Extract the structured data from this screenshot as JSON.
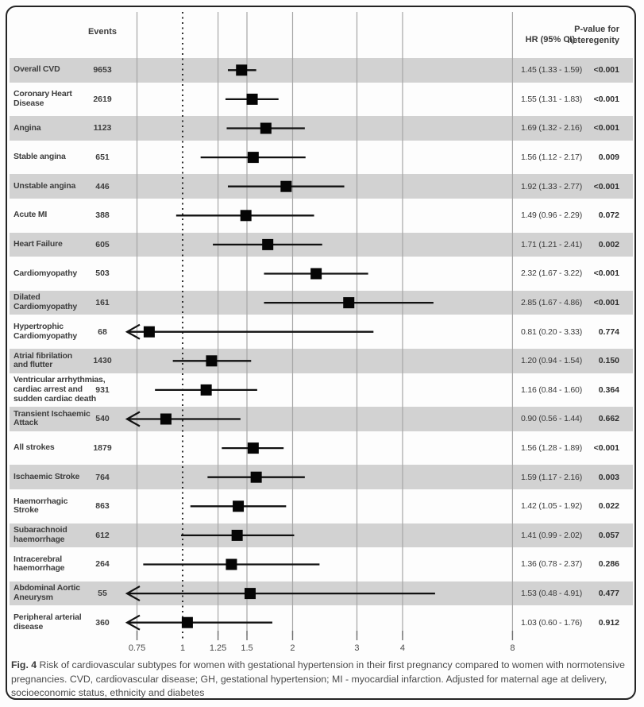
{
  "header": {
    "events": "Events",
    "hr": "HR (95% CI)",
    "pvalue_line1": "P-value for",
    "pvalue_line2": "heteregenity"
  },
  "caption": {
    "label": "Fig. 4",
    "text": " Risk of cardiovascular subtypes for women with gestational hypertension in their first pregnancy compared to women with normotensive pregnancies. CVD, cardiovascular disease; GH, gestational hypertension; MI - myocardial infarction. Adjusted for maternal age at delivery, socioeconomic status, ethnicity and diabetes"
  },
  "chart_data": {
    "type": "forest",
    "x_scale": "log",
    "xticks": [
      0.75,
      1,
      1.25,
      1.5,
      2,
      3,
      4,
      8
    ],
    "xtick_labels": [
      "0.75",
      "1",
      "1.25",
      "1.5",
      "2",
      "3",
      "4",
      "8"
    ],
    "reference_line": 1,
    "xlim": [
      0.71,
      8.5
    ],
    "clip_min": 0.71,
    "grid": "vertical-on",
    "colors": {
      "band": "#d2d2d2",
      "marker": "#050505",
      "ci_line": "#111111",
      "gridline": "#a6a6a6",
      "reference_line": "#1a1a1a",
      "axis_text": "#4a4a4a"
    },
    "rows": [
      {
        "label_lines": [
          "Overall CVD"
        ],
        "events": "9653",
        "hr": 1.45,
        "ci_low": 1.33,
        "ci_high": 1.59,
        "hr_text": "1.45 (1.33 - 1.59)",
        "p": "<0.001"
      },
      {
        "label_lines": [
          "Coronary Heart",
          "Disease"
        ],
        "events": "2619",
        "hr": 1.55,
        "ci_low": 1.31,
        "ci_high": 1.83,
        "hr_text": "1.55 (1.31 - 1.83)",
        "p": "<0.001"
      },
      {
        "label_lines": [
          "Angina"
        ],
        "events": "1123",
        "hr": 1.69,
        "ci_low": 1.32,
        "ci_high": 2.16,
        "hr_text": "1.69 (1.32 - 2.16)",
        "p": "<0.001"
      },
      {
        "label_lines": [
          "Stable angina"
        ],
        "events": "651",
        "hr": 1.56,
        "ci_low": 1.12,
        "ci_high": 2.17,
        "hr_text": "1.56 (1.12 - 2.17)",
        "p": "0.009"
      },
      {
        "label_lines": [
          "Unstable angina"
        ],
        "events": "446",
        "hr": 1.92,
        "ci_low": 1.33,
        "ci_high": 2.77,
        "hr_text": "1.92 (1.33 - 2.77)",
        "p": "<0.001"
      },
      {
        "label_lines": [
          "Acute MI"
        ],
        "events": "388",
        "hr": 1.49,
        "ci_low": 0.96,
        "ci_high": 2.29,
        "hr_text": "1.49 (0.96 - 2.29)",
        "p": "0.072"
      },
      {
        "label_lines": [
          "Heart Failure"
        ],
        "events": "605",
        "hr": 1.71,
        "ci_low": 1.21,
        "ci_high": 2.41,
        "hr_text": "1.71 (1.21 - 2.41)",
        "p": "0.002"
      },
      {
        "label_lines": [
          "Cardiomyopathy"
        ],
        "events": "503",
        "hr": 2.32,
        "ci_low": 1.67,
        "ci_high": 3.22,
        "hr_text": "2.32 (1.67 - 3.22)",
        "p": "<0.001"
      },
      {
        "label_lines": [
          "Dilated",
          "Cardiomyopathy"
        ],
        "events": "161",
        "hr": 2.85,
        "ci_low": 1.67,
        "ci_high": 4.86,
        "hr_text": "2.85 (1.67 - 4.86)",
        "p": "<0.001"
      },
      {
        "label_lines": [
          "Hypertrophic",
          "Cardiomyopathy"
        ],
        "events": "68",
        "hr": 0.81,
        "ci_low": 0.2,
        "ci_high": 3.33,
        "hr_text": "0.81 (0.20 - 3.33)",
        "p": "0.774"
      },
      {
        "label_lines": [
          "Atrial fibrilation",
          "and flutter"
        ],
        "events": "1430",
        "hr": 1.2,
        "ci_low": 0.94,
        "ci_high": 1.54,
        "hr_text": "1.20 (0.94 - 1.54)",
        "p": "0.150"
      },
      {
        "label_lines": [
          "Ventricular arrhythmias,",
          "cardiac arrest and",
          "sudden cardiac death"
        ],
        "events": "931",
        "hr": 1.16,
        "ci_low": 0.84,
        "ci_high": 1.6,
        "hr_text": "1.16 (0.84 - 1.60)",
        "p": "0.364"
      },
      {
        "label_lines": [
          "Transient Ischaemic",
          "Attack"
        ],
        "events": "540",
        "hr": 0.9,
        "ci_low": 0.56,
        "ci_high": 1.44,
        "hr_text": "0.90 (0.56 - 1.44)",
        "p": "0.662"
      },
      {
        "label_lines": [
          "All strokes"
        ],
        "events": "1879",
        "hr": 1.56,
        "ci_low": 1.28,
        "ci_high": 1.89,
        "hr_text": "1.56 (1.28 - 1.89)",
        "p": "<0.001"
      },
      {
        "label_lines": [
          "Ischaemic Stroke"
        ],
        "events": "764",
        "hr": 1.59,
        "ci_low": 1.17,
        "ci_high": 2.16,
        "hr_text": "1.59 (1.17 - 2.16)",
        "p": "0.003"
      },
      {
        "label_lines": [
          "Haemorrhagic",
          "Stroke"
        ],
        "events": "863",
        "hr": 1.42,
        "ci_low": 1.05,
        "ci_high": 1.92,
        "hr_text": "1.42 (1.05 - 1.92)",
        "p": "0.022"
      },
      {
        "label_lines": [
          "Subarachnoid",
          "haemorrhage"
        ],
        "events": "612",
        "hr": 1.41,
        "ci_low": 0.99,
        "ci_high": 2.02,
        "hr_text": "1.41 (0.99 - 2.02)",
        "p": "0.057"
      },
      {
        "label_lines": [
          "Intracerebral",
          "haemorrhage"
        ],
        "events": "264",
        "hr": 1.36,
        "ci_low": 0.78,
        "ci_high": 2.37,
        "hr_text": "1.36 (0.78 - 2.37)",
        "p": "0.286"
      },
      {
        "label_lines": [
          "Abdominal Aortic",
          "Aneurysm"
        ],
        "events": "55",
        "hr": 1.53,
        "ci_low": 0.48,
        "ci_high": 4.91,
        "hr_text": "1.53 (0.48 - 4.91)",
        "p": "0.477"
      },
      {
        "label_lines": [
          "Peripheral arterial",
          "disease"
        ],
        "events": "360",
        "hr": 1.03,
        "ci_low": 0.6,
        "ci_high": 1.76,
        "hr_text": "1.03 (0.60 - 1.76)",
        "p": "0.912"
      }
    ]
  }
}
